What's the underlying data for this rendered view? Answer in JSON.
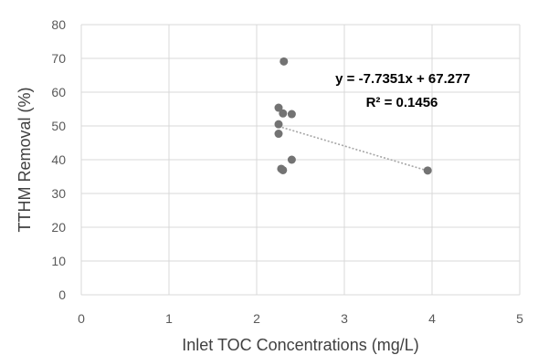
{
  "chart_data": {
    "type": "scatter",
    "title": "",
    "xlabel": "Inlet TOC Concentrations (mg/L)",
    "ylabel": "TTHM Removal (%)",
    "xlim": [
      0,
      5
    ],
    "ylim": [
      0,
      80
    ],
    "xticks": [
      0,
      1,
      2,
      3,
      4,
      5
    ],
    "yticks": [
      0,
      10,
      20,
      30,
      40,
      50,
      60,
      70,
      80
    ],
    "grid": true,
    "legend": "none",
    "series": [
      {
        "x": [
          2.31,
          2.25,
          2.3,
          2.4,
          2.25,
          2.25,
          2.4,
          2.28,
          2.3,
          3.95
        ],
        "y": [
          69.1,
          55.4,
          53.7,
          53.5,
          50.5,
          47.7,
          40.0,
          37.3,
          36.9,
          36.8
        ],
        "color": "#737373"
      }
    ],
    "trendline": {
      "style": "dotted",
      "color": "#a6a6a6",
      "slope": -7.7351,
      "intercept": 67.277,
      "x_range": [
        2.25,
        3.95
      ],
      "equation": "y = -7.7351x + 67.277",
      "r_squared": "R² = 0.1456"
    }
  }
}
